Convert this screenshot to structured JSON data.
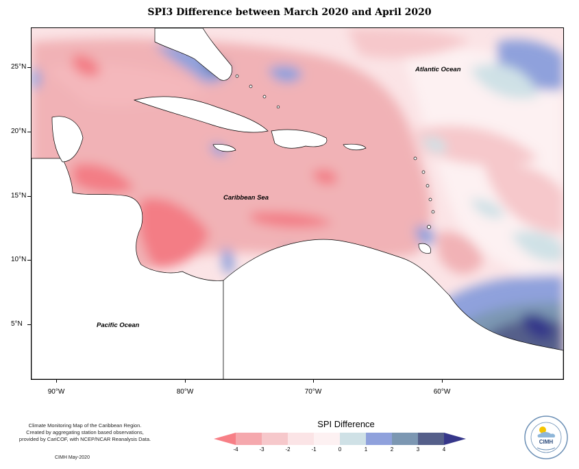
{
  "title": "SPI3 Difference between March 2020 and April 2020",
  "map": {
    "ocean_labels": {
      "atlantic": "Atlantic Ocean",
      "caribbean": "Caribbean Sea",
      "pacific": "Pacific Ocean"
    },
    "lat_labels": [
      "25°N",
      "20°N",
      "15°N",
      "10°N",
      "5°N"
    ],
    "lon_labels": [
      "90°W",
      "80°W",
      "70°W",
      "60°W"
    ]
  },
  "legend": {
    "title": "SPI Difference",
    "ticks": [
      "-4",
      "-3",
      "-2",
      "-1",
      "0",
      "1",
      "2",
      "3",
      "4"
    ],
    "colors": [
      "#f77f86",
      "#f5a8ad",
      "#f6c8cb",
      "#fbe4e6",
      "#fdf1f2",
      "#cfe1e6",
      "#8fa1dc",
      "#7c97b2",
      "#555f8a",
      "#36378a"
    ]
  },
  "credit": {
    "lines": [
      "Climate Monitoring Map of the Caribbean Region.",
      "Created by aggregating station based observations,",
      "provided by CariCOF, with NCEP/NCAR Reanalysis Data."
    ],
    "date": "CIMH May-2020"
  },
  "logo": {
    "text": "CIMH"
  }
}
